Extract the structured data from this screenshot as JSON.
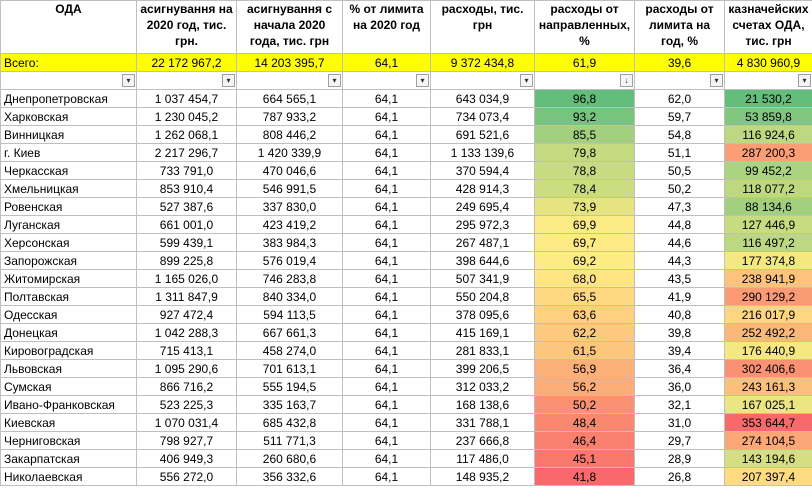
{
  "headers": [
    "ОДА",
    "асигнування на 2020 год, тис. грн.",
    "асигнування с начала 2020 года, тис. грн",
    "% от лимита на 2020 год",
    "расходы, тис. грн",
    "расходы от направленных, %",
    "расходы от лимита на год, %",
    "казначейских счетах ОДА, тис. грн"
  ],
  "total": [
    "Всего:",
    "22 172 967,2",
    "14 203 395,7",
    "64,1",
    "9 372 434,8",
    "61,9",
    "39,6",
    "4 830 960,9"
  ],
  "rows": [
    [
      "Днепропетровская",
      "1 037 454,7",
      "664 565,1",
      "64,1",
      "643 034,9",
      "96,8",
      "62,0",
      "21 530,2"
    ],
    [
      "Харковская",
      "1 230 045,2",
      "787 933,2",
      "64,1",
      "734 073,4",
      "93,2",
      "59,7",
      "53 859,8"
    ],
    [
      "Винницкая",
      "1 262 068,1",
      "808 446,2",
      "64,1",
      "691 521,6",
      "85,5",
      "54,8",
      "116 924,6"
    ],
    [
      "г. Киев",
      "2 217 296,7",
      "1 420 339,9",
      "64,1",
      "1 133 139,6",
      "79,8",
      "51,1",
      "287 200,3"
    ],
    [
      "Черкасская",
      "733 791,0",
      "470 046,6",
      "64,1",
      "370 594,4",
      "78,8",
      "50,5",
      "99 452,2"
    ],
    [
      "Хмельницкая",
      "853 910,4",
      "546 991,5",
      "64,1",
      "428 914,3",
      "78,4",
      "50,2",
      "118 077,2"
    ],
    [
      "Ровенская",
      "527 387,6",
      "337 830,0",
      "64,1",
      "249 695,4",
      "73,9",
      "47,3",
      "88 134,6"
    ],
    [
      "Луганская",
      "661 001,0",
      "423 419,2",
      "64,1",
      "295 972,3",
      "69,9",
      "44,8",
      "127 446,9"
    ],
    [
      "Херсонская",
      "599 439,1",
      "383 984,3",
      "64,1",
      "267 487,1",
      "69,7",
      "44,6",
      "116 497,2"
    ],
    [
      "Запорожская",
      "899 225,8",
      "576 019,4",
      "64,1",
      "398 644,6",
      "69,2",
      "44,3",
      "177 374,8"
    ],
    [
      "Житомирская",
      "1 165 026,0",
      "746 283,8",
      "64,1",
      "507 341,9",
      "68,0",
      "43,5",
      "238 941,9"
    ],
    [
      "Полтавская",
      "1 311 847,9",
      "840 334,0",
      "64,1",
      "550 204,8",
      "65,5",
      "41,9",
      "290 129,2"
    ],
    [
      "Одесская",
      "927 472,4",
      "594 113,5",
      "64,1",
      "378 095,6",
      "63,6",
      "40,8",
      "216 017,9"
    ],
    [
      "Донецкая",
      "1 042 288,3",
      "667 661,3",
      "64,1",
      "415 169,1",
      "62,2",
      "39,8",
      "252 492,2"
    ],
    [
      "Кировоградская",
      "715 413,1",
      "458 274,0",
      "64,1",
      "281 833,1",
      "61,5",
      "39,4",
      "176 440,9"
    ],
    [
      "Львовская",
      "1 095 290,6",
      "701 613,1",
      "64,1",
      "399 206,5",
      "56,9",
      "36,4",
      "302 406,6"
    ],
    [
      "Сумская",
      "866 716,2",
      "555 194,5",
      "64,1",
      "312 033,2",
      "56,2",
      "36,0",
      "243 161,3"
    ],
    [
      "Ивано-Франковская",
      "523 225,3",
      "335 163,7",
      "64,1",
      "168 138,6",
      "50,2",
      "32,1",
      "167 025,1"
    ],
    [
      "Киевская",
      "1 070 031,4",
      "685 432,8",
      "64,1",
      "331 788,1",
      "48,4",
      "31,0",
      "353 644,7"
    ],
    [
      "Черниговская",
      "798 927,7",
      "511 771,3",
      "64,1",
      "237 666,8",
      "46,4",
      "29,7",
      "274 104,5"
    ],
    [
      "Закарпатская",
      "406 949,3",
      "260 680,6",
      "64,1",
      "117 486,0",
      "45,1",
      "28,9",
      "143 194,6"
    ],
    [
      "Николаевская",
      "556 272,0",
      "356 332,6",
      "64,1",
      "148 935,2",
      "41,8",
      "26,8",
      "207 397,4"
    ]
  ],
  "colors": {
    "total_bg": "#ffff00",
    "grid": "#bfbfbf"
  }
}
